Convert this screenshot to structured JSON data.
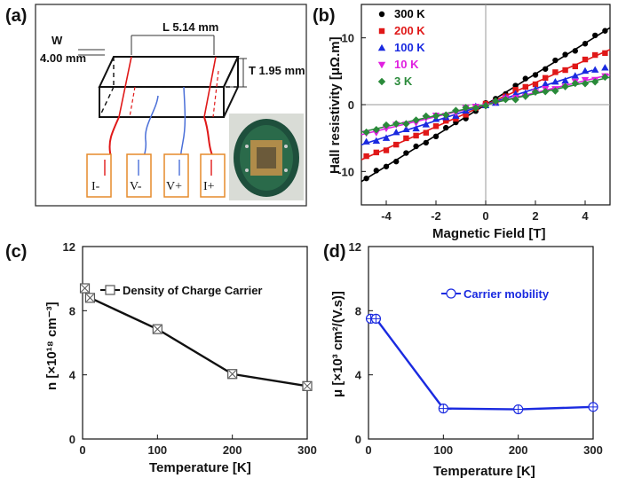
{
  "panels": {
    "a": {
      "label": "(a)",
      "dim_length": "L  5.14 mm",
      "dim_width_w": "W",
      "dim_width_value": "4.00 mm",
      "dim_thickness": "T 1.95 mm",
      "pins": [
        "I-",
        "V-",
        "V+",
        "I+"
      ]
    },
    "b": {
      "label": "(b)"
    },
    "c": {
      "label": "(c)"
    },
    "d": {
      "label": "(d)"
    }
  },
  "colors": {
    "wire_current": "#e01818",
    "wire_voltage": "#4a6fd8",
    "pin_box": "#e58a2a",
    "black_series": "#000000",
    "line_c": "#111111",
    "line_d": "#1a2ae0"
  },
  "chart_data": [
    {
      "id": "b",
      "type": "scatter",
      "xlabel": "Magnetic Field [T]",
      "ylabel": "Hall resistivity  [μΩ.m]",
      "xlim": [
        -5,
        5
      ],
      "ylim": [
        -15,
        15
      ],
      "xticks": [
        -4,
        -2,
        0,
        2,
        4
      ],
      "yticks": [
        -10,
        0,
        10
      ],
      "legend_position": "top-left",
      "series": [
        {
          "name": "300 K",
          "color": "#000000",
          "marker": "circle",
          "slope": 2.3,
          "fit_x": [
            -5,
            5
          ]
        },
        {
          "name": "200 K",
          "color": "#e01818",
          "marker": "square",
          "slope": 1.65,
          "fit_x": [
            -5,
            5
          ]
        },
        {
          "name": "100 K",
          "color": "#1a2ae0",
          "marker": "triangle",
          "slope": 1.2,
          "fit_x": [
            -5,
            4.3
          ]
        },
        {
          "name": "10 K",
          "color": "#e020e0",
          "marker": "triangle-down",
          "slope": 0.9,
          "fit_x": [
            -5,
            5
          ]
        },
        {
          "name": "3 K",
          "color": "#2a8a3a",
          "marker": "diamond",
          "slope": 0.82,
          "fit_x": [
            -5,
            5
          ]
        }
      ]
    },
    {
      "id": "c",
      "type": "line",
      "xlabel": "Temperature [K]",
      "ylabel": "n [×10¹⁸ cm⁻³]",
      "xlim": [
        0,
        300
      ],
      "ylim": [
        0,
        12
      ],
      "xticks": [
        0,
        100,
        200,
        300
      ],
      "yticks": [
        0,
        4,
        8,
        12
      ],
      "legend_position": "top-right",
      "series": [
        {
          "name": "Density of Charge Carrier",
          "x": [
            3,
            10,
            100,
            200,
            300
          ],
          "y": [
            9.4,
            8.8,
            6.85,
            4.05,
            3.3
          ]
        }
      ]
    },
    {
      "id": "d",
      "type": "line",
      "xlabel": "Temperature [K]",
      "ylabel": "μ [×10³ cm²/(V.s)]",
      "xlim": [
        0,
        300
      ],
      "ylim": [
        0,
        12
      ],
      "xticks": [
        0,
        100,
        200,
        300
      ],
      "yticks": [
        0,
        4,
        8,
        12
      ],
      "legend_position": "top-left",
      "series": [
        {
          "name": "Carrier mobility",
          "x": [
            3,
            10,
            100,
            200,
            300
          ],
          "y": [
            7.5,
            7.5,
            1.9,
            1.85,
            2.0
          ]
        }
      ]
    }
  ]
}
